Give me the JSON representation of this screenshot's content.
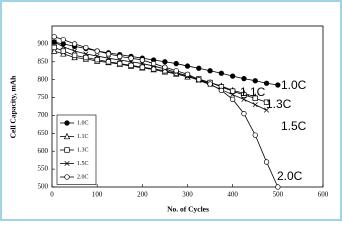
{
  "chart_data": {
    "type": "line",
    "x_label": "No. of Cycles",
    "y_label": "Cell Capacity, mAh",
    "x": [
      5,
      25,
      50,
      75,
      100,
      125,
      150,
      175,
      200,
      225,
      250,
      275,
      300,
      325,
      350,
      375,
      400,
      425,
      450,
      475,
      500
    ],
    "series": [
      {
        "name": "1.0C",
        "color": "#000000",
        "marker": "filled-circle",
        "values": [
          905,
          900,
          893,
          887,
          880,
          875,
          870,
          865,
          860,
          855,
          850,
          845,
          838,
          832,
          825,
          818,
          810,
          803,
          797,
          790,
          785
        ]
      },
      {
        "name": "1.1C",
        "color": "#000000",
        "marker": "triangle",
        "values": [
          880,
          872,
          862,
          858,
          852,
          848,
          843,
          838,
          833,
          828,
          822,
          816,
          808,
          800,
          792,
          782,
          770,
          762,
          752,
          null,
          null
        ]
      },
      {
        "name": "1.3C",
        "color": "#000000",
        "marker": "square",
        "values": [
          890,
          880,
          868,
          862,
          856,
          850,
          845,
          840,
          835,
          830,
          825,
          818,
          812,
          802,
          792,
          780,
          768,
          757,
          748,
          737,
          null
        ]
      },
      {
        "name": "1.5C",
        "color": "#000000",
        "marker": "cross",
        "values": [
          905,
          892,
          880,
          872,
          866,
          860,
          855,
          850,
          845,
          838,
          830,
          820,
          810,
          798,
          786,
          772,
          758,
          745,
          730,
          715,
          null
        ]
      },
      {
        "name": "2.0C",
        "color": "#000000",
        "marker": "circle",
        "values": [
          920,
          912,
          900,
          890,
          880,
          872,
          865,
          860,
          855,
          845,
          835,
          825,
          815,
          800,
          788,
          770,
          745,
          705,
          645,
          570,
          500
        ]
      }
    ],
    "xlim": [
      0,
      600
    ],
    "xticks": [
      0,
      100,
      200,
      300,
      400,
      500,
      600
    ],
    "ylim": [
      500,
      950
    ],
    "yticks": [
      500,
      550,
      600,
      650,
      700,
      750,
      800,
      850,
      900
    ],
    "legend": "lower-left"
  }
}
